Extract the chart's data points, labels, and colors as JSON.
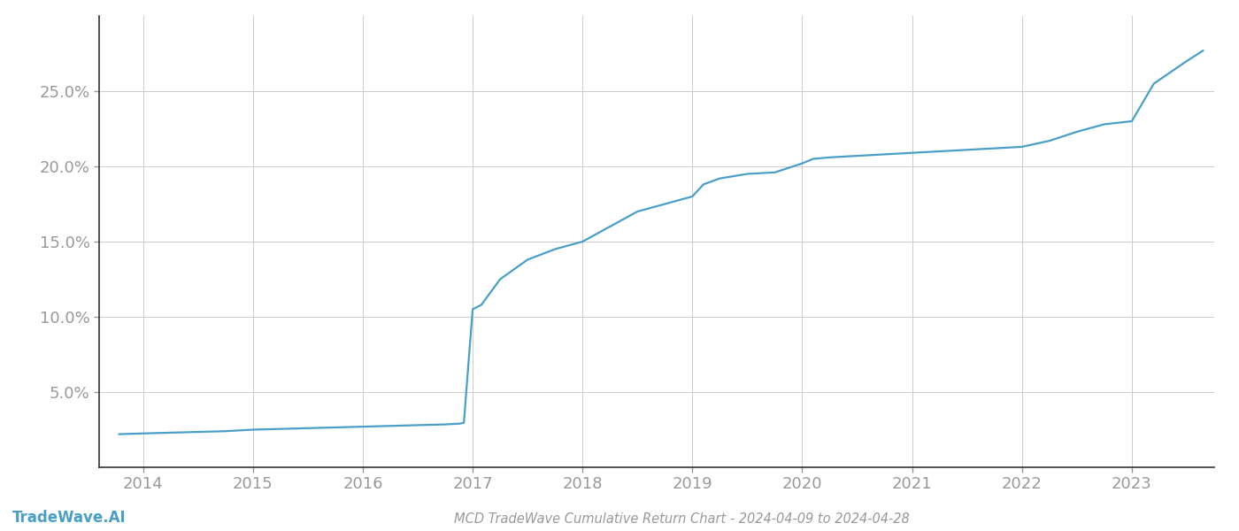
{
  "title": "MCD TradeWave Cumulative Return Chart - 2024-04-09 to 2024-04-28",
  "watermark": "TradeWave.AI",
  "line_color": "#4a9fc8",
  "background_color": "#ffffff",
  "grid_color": "#cccccc",
  "x_years": [
    2014,
    2015,
    2016,
    2017,
    2018,
    2019,
    2020,
    2021,
    2022,
    2023
  ],
  "x_data": [
    2013.78,
    2014.0,
    2014.25,
    2014.5,
    2014.75,
    2015.0,
    2015.25,
    2015.5,
    2015.75,
    2016.0,
    2016.25,
    2016.5,
    2016.75,
    2016.88,
    2016.92,
    2017.0,
    2017.08,
    2017.25,
    2017.5,
    2017.75,
    2018.0,
    2018.25,
    2018.5,
    2018.75,
    2019.0,
    2019.1,
    2019.25,
    2019.5,
    2019.75,
    2020.0,
    2020.1,
    2020.25,
    2020.5,
    2020.75,
    2021.0,
    2021.25,
    2021.5,
    2021.75,
    2022.0,
    2022.25,
    2022.5,
    2022.75,
    2023.0,
    2023.2,
    2023.5,
    2023.65
  ],
  "y_data": [
    2.2,
    2.25,
    2.3,
    2.35,
    2.4,
    2.5,
    2.55,
    2.6,
    2.65,
    2.7,
    2.75,
    2.8,
    2.85,
    2.9,
    2.95,
    10.5,
    10.8,
    12.5,
    13.8,
    14.5,
    15.0,
    16.0,
    17.0,
    17.5,
    18.0,
    18.8,
    19.2,
    19.5,
    19.6,
    20.2,
    20.5,
    20.6,
    20.7,
    20.8,
    20.9,
    21.0,
    21.1,
    21.2,
    21.3,
    21.7,
    22.3,
    22.8,
    23.0,
    25.5,
    27.0,
    27.7
  ],
  "ylim": [
    0,
    30
  ],
  "yticks": [
    5.0,
    10.0,
    15.0,
    20.0,
    25.0
  ],
  "ytick_labels": [
    "5.0%",
    "10.0%",
    "15.0%",
    "20.0%",
    "25.0%"
  ],
  "line_width": 1.6,
  "title_fontsize": 10.5,
  "tick_fontsize": 13,
  "watermark_fontsize": 12,
  "axis_color": "#333333",
  "tick_color": "#999999",
  "spine_color": "#333333"
}
